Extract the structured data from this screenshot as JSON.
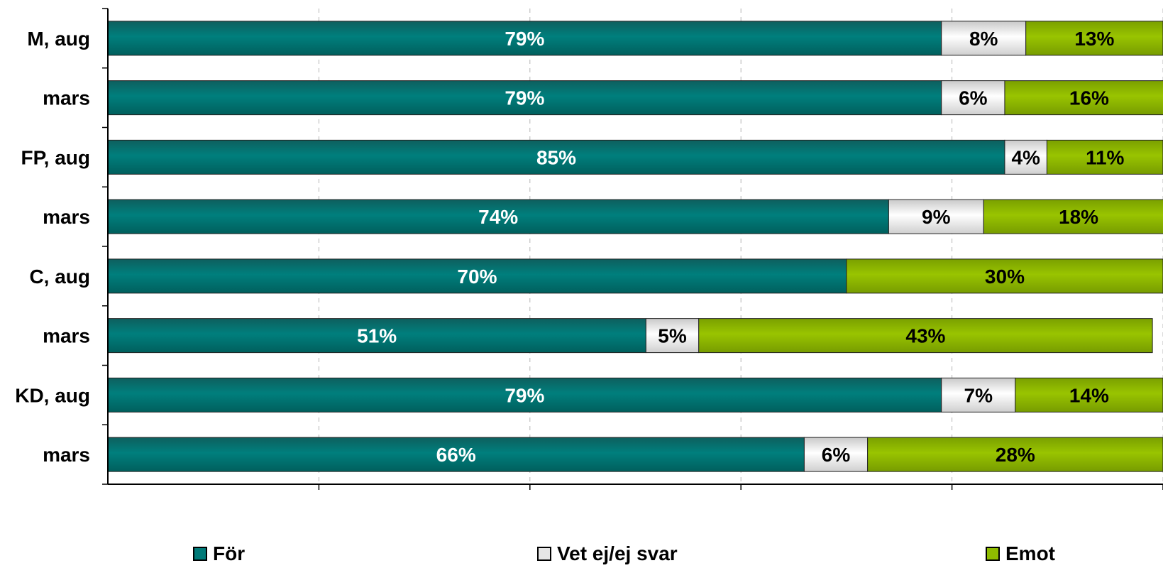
{
  "chart_data": {
    "type": "bar",
    "orientation": "horizontal",
    "stacked": true,
    "categories": [
      "M, aug",
      "mars",
      "FP, aug",
      "mars",
      "C, aug",
      "mars",
      "KD, aug",
      "mars"
    ],
    "series": [
      {
        "name": "För",
        "values": [
          79,
          79,
          85,
          74,
          70,
          51,
          79,
          66
        ],
        "labels": [
          "79%",
          "79%",
          "85%",
          "74%",
          "70%",
          "51%",
          "79%",
          "66%"
        ]
      },
      {
        "name": "Vet ej/ej svar",
        "values": [
          8,
          6,
          4,
          9,
          0,
          5,
          7,
          6
        ],
        "labels": [
          "8%",
          "6%",
          "4%",
          "9%",
          "",
          "5%",
          "7%",
          "6%"
        ]
      },
      {
        "name": "Emot",
        "values": [
          13,
          16,
          11,
          18,
          30,
          43,
          14,
          28
        ],
        "labels": [
          "13%",
          "16%",
          "11%",
          "18%",
          "30%",
          "43%",
          "14%",
          "28%"
        ]
      }
    ],
    "colors": [
      "#007a78",
      "#e6e6e6",
      "#8fbc00"
    ],
    "label_colors": [
      "#ffffff",
      "#000000",
      "#000000"
    ],
    "xlim": [
      0,
      100
    ],
    "grid": true,
    "legend": "bottom"
  }
}
